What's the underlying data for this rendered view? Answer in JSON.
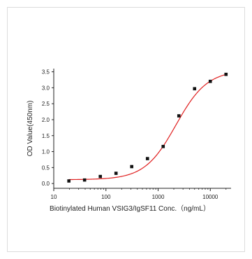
{
  "chart_data": {
    "type": "scatter",
    "title": "",
    "xlabel": "Biotinylated Human VSIG3/IgSF11 Conc.（ng/mL）",
    "ylabel": "OD Value(450nm)",
    "x_scale": "log",
    "xlim": [
      10,
      25000
    ],
    "ylim": [
      -0.15,
      3.6
    ],
    "x_ticks": [
      10,
      100,
      1000,
      10000
    ],
    "x_tick_labels": [
      "10",
      "100",
      "1000",
      "10000"
    ],
    "y_ticks": [
      0.0,
      0.5,
      1.0,
      1.5,
      2.0,
      2.5,
      3.0,
      3.5
    ],
    "y_tick_labels": [
      "0.0",
      "0.5",
      "1.0",
      "1.5",
      "2.0",
      "2.5",
      "3.0",
      "3.5"
    ],
    "series": [
      {
        "type": "scatter",
        "marker": "square",
        "color": "#111111",
        "x": [
          19.5,
          39,
          78,
          156,
          312,
          625,
          1250,
          2500,
          5000,
          10000,
          20000
        ],
        "y": [
          0.08,
          0.11,
          0.22,
          0.32,
          0.53,
          0.78,
          1.16,
          2.12,
          2.97,
          3.2,
          3.42
        ]
      },
      {
        "type": "line",
        "fit": "4PL",
        "color": "#e02020",
        "params": {
          "bottom": 0.12,
          "top": 3.55,
          "ec50": 2200,
          "hill": 1.45
        },
        "x_range": [
          19.5,
          20000
        ]
      }
    ],
    "grid": false,
    "legend": "none"
  }
}
